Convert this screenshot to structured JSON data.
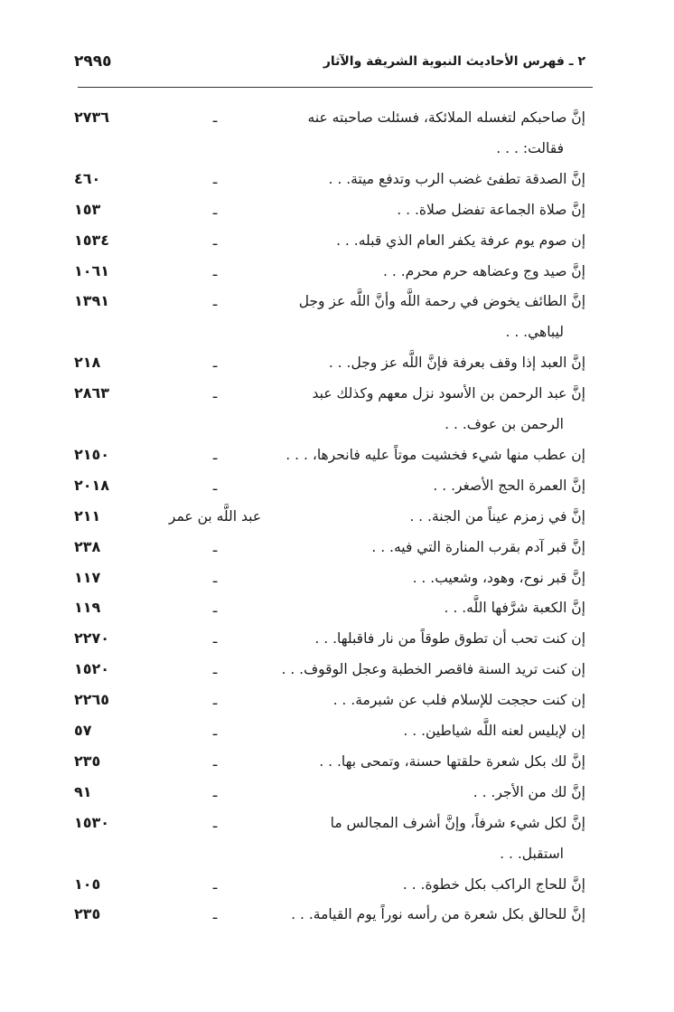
{
  "header": {
    "page_number": "٢٩٩٥",
    "title": "٢ ـ فهرس الأحاديث النبوية الشريفة والآثار"
  },
  "entries": [
    {
      "text": "إنَّ صاحبكم لتغسله الملائكة، فسئلت صاحبته عنه",
      "cont": "فقالت: . . .",
      "narrator": "ـ",
      "number": "٢٧٣٦"
    },
    {
      "text": "إنَّ الصدقة تطفئ غضب الرب وتدفع ميتة. . .",
      "narrator": "ـ",
      "number": "٤٦٠"
    },
    {
      "text": "إنَّ صلاة الجماعة تفضل صلاة. . .",
      "narrator": "ـ",
      "number": "١٥٣"
    },
    {
      "text": "إن صوم يوم عرفة يكفر العام الذي قبله. . .",
      "narrator": "ـ",
      "number": "١٥٣٤"
    },
    {
      "text": "إنَّ صيد وج وعضاهه حرم محرم. . .",
      "narrator": "ـ",
      "number": "١٠٦١"
    },
    {
      "text": "إنَّ الطائف يخوض في رحمة اللَّه وأنَّ اللَّه عز وجل",
      "cont": "ليباهي. . .",
      "narrator": "ـ",
      "number": "١٣٩١"
    },
    {
      "text": "إنَّ العبد إذا وقف بعرفة فإنَّ اللَّه عز وجل. . .",
      "narrator": "ـ",
      "number": "٢١٨"
    },
    {
      "text": "إنَّ عبد الرحمن بن الأسود نزل معهم وكذلك عبد",
      "cont": "الرحمن بن عوف. . .",
      "narrator": "ـ",
      "number": "٢٨٦٣"
    },
    {
      "text": "إن عطب منها شيء فخشيت موتاً عليه فانحرها، . . .",
      "narrator": "ـ",
      "number": "٢١٥٠"
    },
    {
      "text": "إنَّ العمرة الحج الأصغر. . .",
      "narrator": "ـ",
      "number": "٢٠١٨"
    },
    {
      "text": "إنَّ في زمزم عيناً من الجنة. . .",
      "narrator": "عبد اللَّه بن عمر",
      "number": "٢١١"
    },
    {
      "text": "إنَّ قبر آدم بقرب المنارة التي فيه. . .",
      "narrator": "ـ",
      "number": "٢٣٨"
    },
    {
      "text": "إنَّ قبر نوح، وهود، وشعيب. . .",
      "narrator": "ـ",
      "number": "١١٧"
    },
    {
      "text": "إنَّ الكعبة شرَّفها اللَّه. . .",
      "narrator": "ـ",
      "number": "١١٩"
    },
    {
      "text": "إن كنت تحب أن تطوق طوقاً من نار فاقبلها. . .",
      "narrator": "ـ",
      "number": "٢٢٧٠"
    },
    {
      "text": "إن كنت تريد السنة فاقصر الخطبة وعجل الوقوف. . .",
      "narrator": "ـ",
      "number": "١٥٢٠"
    },
    {
      "text": "إن كنت حججت للإسلام فلب عن شبرمة. . .",
      "narrator": "ـ",
      "number": "٢٢٦٥"
    },
    {
      "text": "إن لإبليس لعنه اللَّه شياطين. . .",
      "narrator": "ـ",
      "number": "٥٧"
    },
    {
      "text": "إنَّ لك بكل شعرة حلقتها حسنة، وتمحى بها. . .",
      "narrator": "ـ",
      "number": "٢٣٥"
    },
    {
      "text": "إنَّ لك من الأجر. . .",
      "narrator": "ـ",
      "number": "٩١"
    },
    {
      "text": "إنَّ لكل شيء شرفاً، وإنَّ أشرف المجالس ما",
      "cont": "استقبل. . .",
      "narrator": "ـ",
      "number": "١٥٣٠"
    },
    {
      "text": "إنَّ للحاج الراكب بكل خطوة. . .",
      "narrator": "ـ",
      "number": "١٠٥"
    },
    {
      "text": "إنَّ للحالق بكل شعرة من رأسه نوراً يوم القيامة. . .",
      "narrator": "ـ",
      "number": "٢٣٥"
    }
  ]
}
